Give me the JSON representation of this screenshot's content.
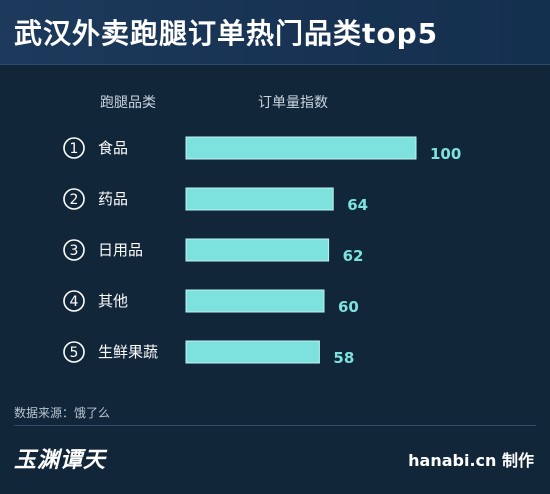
{
  "title": "武汉外卖跑腿订单热门品类top5",
  "header": {
    "category_label": "跑腿品类",
    "value_label": "订单量指数"
  },
  "chart_data": {
    "type": "bar",
    "orientation": "horizontal",
    "categories": [
      "食品",
      "药品",
      "日用品",
      "其他",
      "生鲜果蔬"
    ],
    "ranks": [
      "1",
      "2",
      "3",
      "4",
      "5"
    ],
    "values": [
      100,
      64,
      62,
      60,
      58
    ],
    "xlim": [
      0,
      100
    ],
    "bar_color": "#7de2dd",
    "label_color": "#7de2dd"
  },
  "source": "数据来源：饿了么",
  "logo": "玉渊谭天",
  "credit": "hanabi.cn 制作"
}
